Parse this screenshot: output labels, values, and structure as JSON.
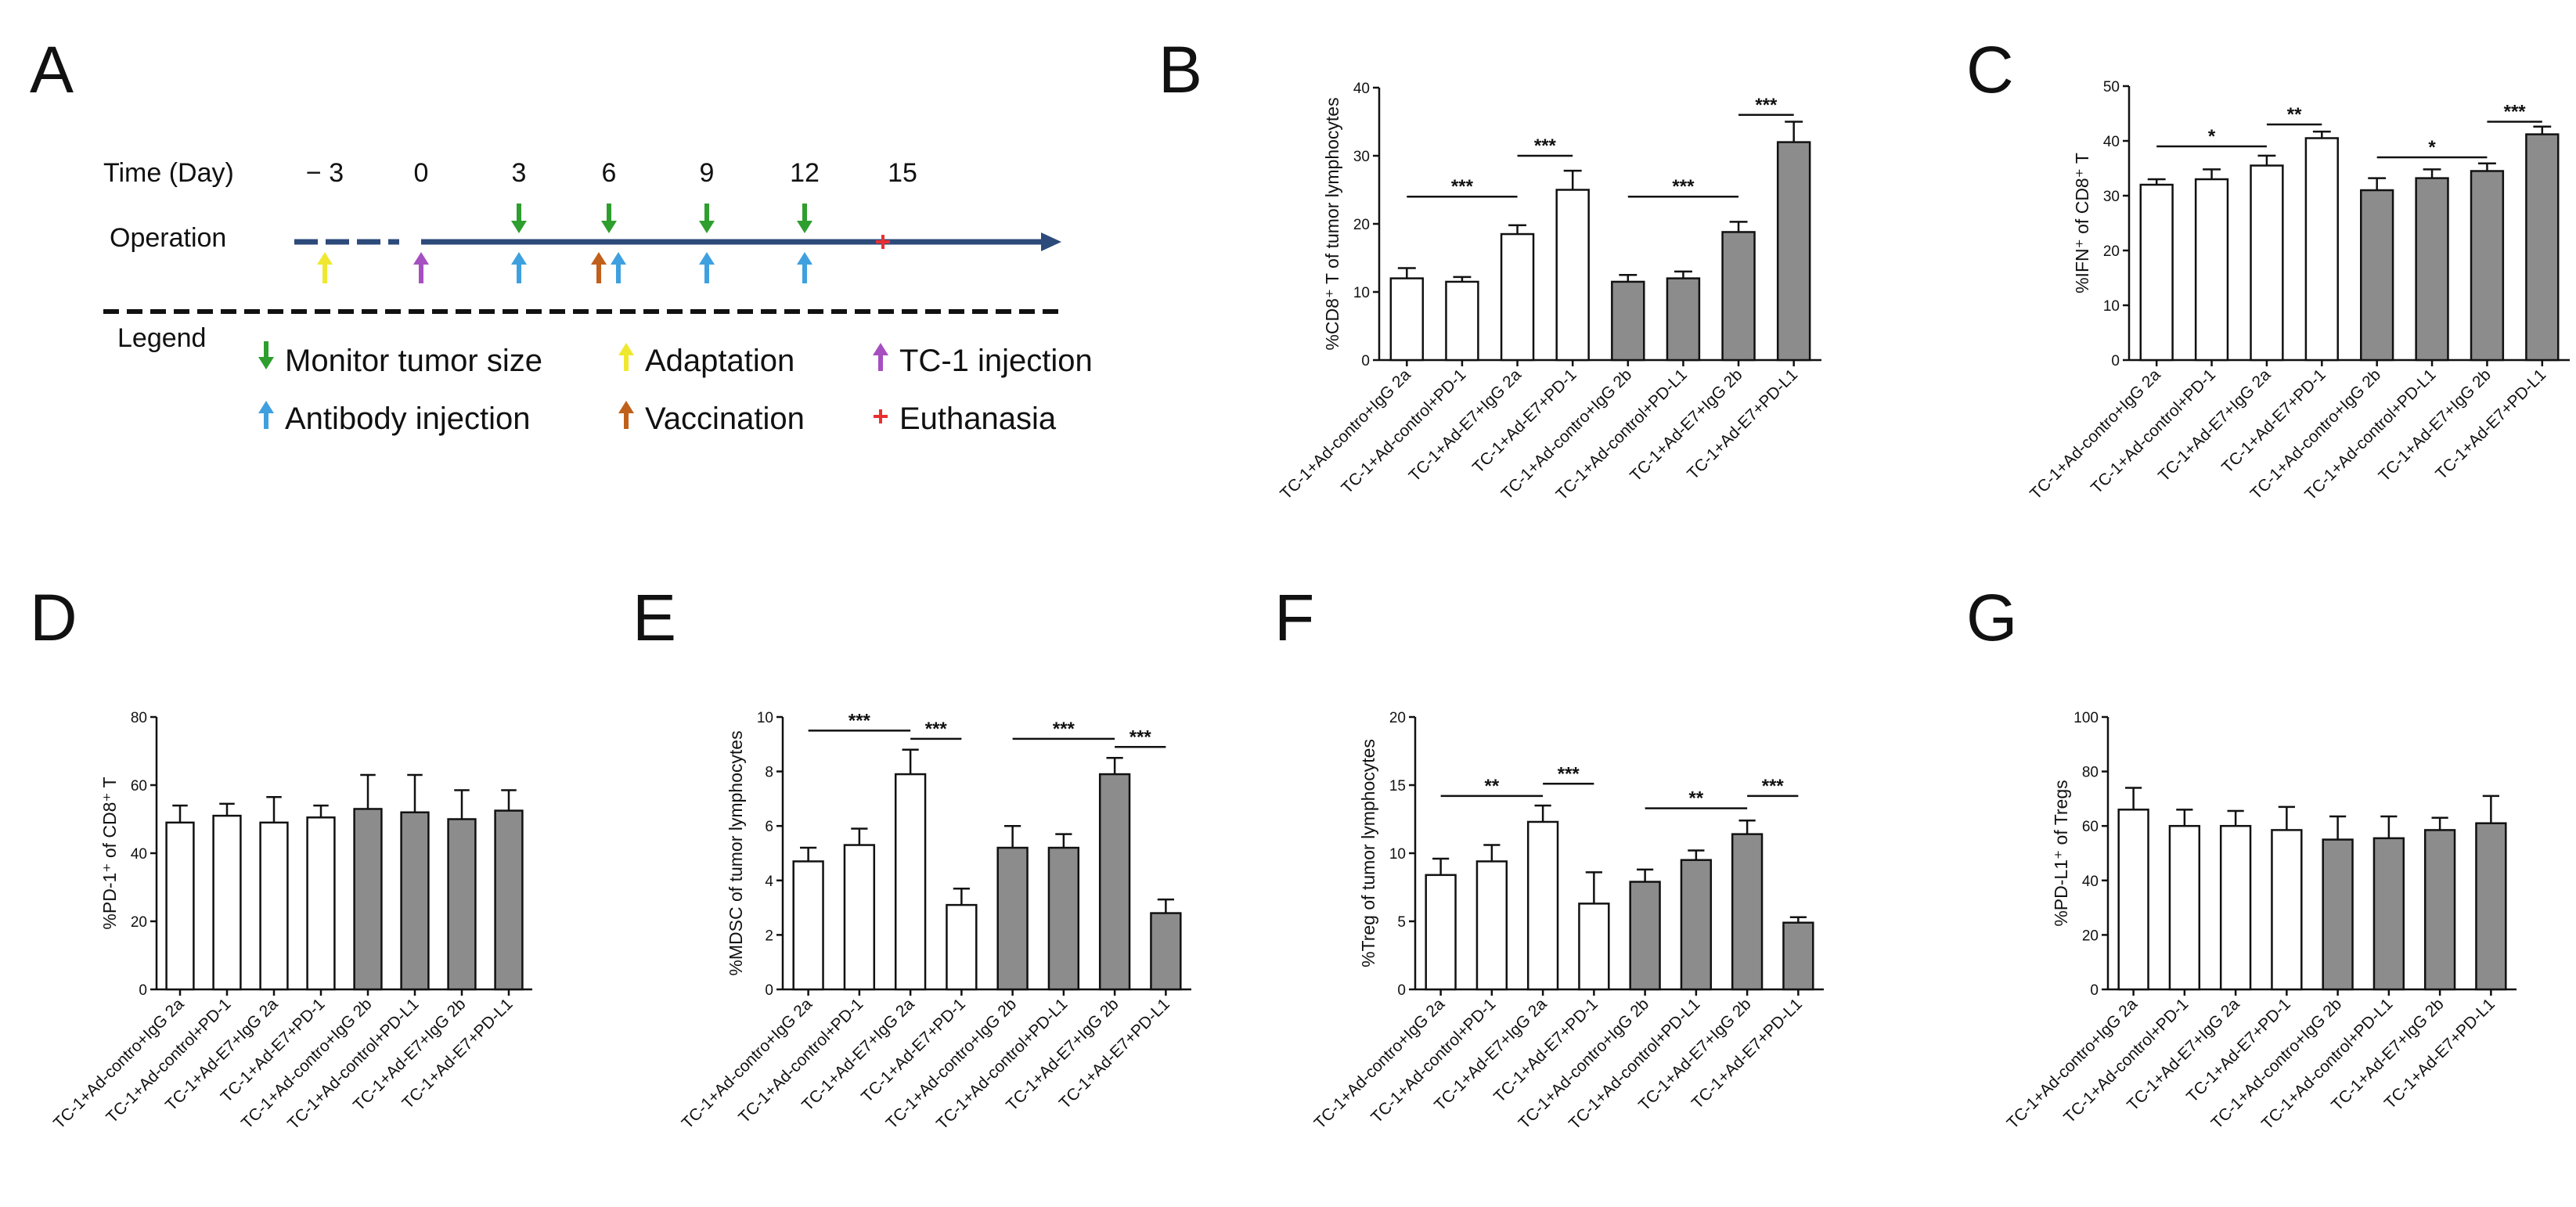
{
  "panels": {
    "A": "A",
    "B": "B",
    "C": "C",
    "D": "D",
    "E": "E",
    "F": "F",
    "G": "G"
  },
  "timeline": {
    "time_label": "Time (Day)",
    "operation_label": "Operation",
    "legend_label": "Legend",
    "days": [
      "− 3",
      "0",
      "3",
      "6",
      "9",
      "12",
      "15"
    ],
    "colors": {
      "monitor": "#2e9e2e",
      "adaptation": "#f0e830",
      "tc1": "#a64fc0",
      "antibody": "#3fa0e0",
      "vaccination": "#c0601a",
      "euthanasia": "#e83030",
      "line": "#2c4a7a"
    },
    "legend": [
      {
        "key": "monitor",
        "label": "Monitor tumor size",
        "icon": "down-arrow"
      },
      {
        "key": "adaptation",
        "label": "Adaptation",
        "icon": "up-arrow"
      },
      {
        "key": "tc1",
        "label": "TC-1 injection",
        "icon": "up-arrow"
      },
      {
        "key": "antibody",
        "label": "Antibody injection",
        "icon": "up-arrow"
      },
      {
        "key": "vaccination",
        "label": "Vaccination",
        "icon": "up-arrow"
      },
      {
        "key": "euthanasia",
        "label": "Euthanasia",
        "icon": "star"
      }
    ]
  },
  "chart_data": [
    {
      "id": "B",
      "type": "bar",
      "ylabel": "%CD8⁺ T of tumor lymphocytes",
      "ylim": [
        0,
        40
      ],
      "yticks": [
        0,
        10,
        20,
        30,
        40
      ],
      "categories": [
        "TC-1+Ad-contro+IgG 2a",
        "TC-1+Ad-control+PD-1",
        "TC-1+Ad-E7+IgG 2a",
        "TC-1+Ad-E7+PD-1",
        "TC-1+Ad-contro+IgG 2b",
        "TC-1+Ad-control+PD-L1",
        "TC-1+Ad-E7+IgG 2b",
        "TC-1+Ad-E7+PD-L1"
      ],
      "values": [
        12,
        11.5,
        18.5,
        25,
        11.5,
        12,
        18.8,
        32
      ],
      "errors": [
        1.5,
        0.7,
        1.3,
        2.8,
        1.0,
        1.0,
        1.5,
        3.0
      ],
      "fills": [
        "white",
        "white",
        "white",
        "white",
        "gray",
        "gray",
        "gray",
        "gray"
      ],
      "significance": [
        {
          "from": 0,
          "to": 2,
          "level": 24,
          "text": "***"
        },
        {
          "from": 2,
          "to": 3,
          "level": 30,
          "text": "***"
        },
        {
          "from": 4,
          "to": 6,
          "level": 24,
          "text": "***"
        },
        {
          "from": 6,
          "to": 7,
          "level": 36,
          "text": "***"
        }
      ]
    },
    {
      "id": "C",
      "type": "bar",
      "ylabel": "%IFN⁺ of CD8⁺ T",
      "ylim": [
        0,
        50
      ],
      "yticks": [
        0,
        10,
        20,
        30,
        40,
        50
      ],
      "categories": [
        "TC-1+Ad-contro+IgG 2a",
        "TC-1+Ad-control+PD-1",
        "TC-1+Ad-E7+IgG 2a",
        "TC-1+Ad-E7+PD-1",
        "TC-1+Ad-contro+IgG 2b",
        "TC-1+Ad-control+PD-L1",
        "TC-1+Ad-E7+IgG 2b",
        "TC-1+Ad-E7+PD-L1"
      ],
      "values": [
        32,
        33,
        35.5,
        40.5,
        31,
        33.2,
        34.5,
        41.2
      ],
      "errors": [
        1.0,
        1.8,
        1.8,
        1.2,
        2.2,
        1.6,
        1.4,
        1.4
      ],
      "fills": [
        "white",
        "white",
        "white",
        "white",
        "gray",
        "gray",
        "gray",
        "gray"
      ],
      "significance": [
        {
          "from": 0,
          "to": 2,
          "level": 39,
          "text": "*"
        },
        {
          "from": 2,
          "to": 3,
          "level": 43,
          "text": "**"
        },
        {
          "from": 4,
          "to": 6,
          "level": 37,
          "text": "*"
        },
        {
          "from": 6,
          "to": 7,
          "level": 43.5,
          "text": "***"
        }
      ]
    },
    {
      "id": "D",
      "type": "bar",
      "ylabel": "%PD-1⁺ of CD8⁺ T",
      "ylim": [
        0,
        80
      ],
      "yticks": [
        0,
        20,
        40,
        60,
        80
      ],
      "categories": [
        "TC-1+Ad-contro+IgG 2a",
        "TC-1+Ad-control+PD-1",
        "TC-1+Ad-E7+IgG 2a",
        "TC-1+Ad-E7+PD-1",
        "TC-1+Ad-contro+IgG 2b",
        "TC-1+Ad-control+PD-L1",
        "TC-1+Ad-E7+IgG 2b",
        "TC-1+Ad-E7+PD-L1"
      ],
      "values": [
        49,
        51,
        49,
        50.5,
        53,
        52,
        50,
        52.5
      ],
      "errors": [
        5,
        3.5,
        7.5,
        3.5,
        10,
        11,
        8.5,
        6
      ],
      "fills": [
        "white",
        "white",
        "white",
        "white",
        "gray",
        "gray",
        "gray",
        "gray"
      ],
      "significance": []
    },
    {
      "id": "E",
      "type": "bar",
      "ylabel": "%MDSC of tumor lymphocytes",
      "ylim": [
        0,
        10
      ],
      "yticks": [
        0,
        2,
        4,
        6,
        8,
        10
      ],
      "categories": [
        "TC-1+Ad-contro+IgG 2a",
        "TC-1+Ad-control+PD-1",
        "TC-1+Ad-E7+IgG 2a",
        "TC-1+Ad-E7+PD-1",
        "TC-1+Ad-contro+IgG 2b",
        "TC-1+Ad-control+PD-L1",
        "TC-1+Ad-E7+IgG 2b",
        "TC-1+Ad-E7+PD-L1"
      ],
      "values": [
        4.7,
        5.3,
        7.9,
        3.1,
        5.2,
        5.2,
        7.9,
        2.8
      ],
      "errors": [
        0.5,
        0.6,
        0.9,
        0.6,
        0.8,
        0.5,
        0.6,
        0.5
      ],
      "fills": [
        "white",
        "white",
        "white",
        "white",
        "gray",
        "gray",
        "gray",
        "gray"
      ],
      "significance": [
        {
          "from": 0,
          "to": 2,
          "level": 9.5,
          "text": "***"
        },
        {
          "from": 2,
          "to": 3,
          "level": 9.2,
          "text": "***"
        },
        {
          "from": 4,
          "to": 6,
          "level": 9.2,
          "text": "***"
        },
        {
          "from": 6,
          "to": 7,
          "level": 8.9,
          "text": "***"
        }
      ]
    },
    {
      "id": "F",
      "type": "bar",
      "ylabel": "%Treg of tumor lymphocytes",
      "ylim": [
        0,
        20
      ],
      "yticks": [
        0,
        5,
        10,
        15,
        20
      ],
      "categories": [
        "TC-1+Ad-contro+IgG 2a",
        "TC-1+Ad-control+PD-1",
        "TC-1+Ad-E7+IgG 2a",
        "TC-1+Ad-E7+PD-1",
        "TC-1+Ad-contro+IgG 2b",
        "TC-1+Ad-control+PD-L1",
        "TC-1+Ad-E7+IgG 2b",
        "TC-1+Ad-E7+PD-L1"
      ],
      "values": [
        8.4,
        9.4,
        12.3,
        6.3,
        7.9,
        9.5,
        11.4,
        4.9
      ],
      "errors": [
        1.2,
        1.2,
        1.2,
        2.3,
        0.9,
        0.7,
        1.0,
        0.4
      ],
      "fills": [
        "white",
        "white",
        "white",
        "white",
        "gray",
        "gray",
        "gray",
        "gray"
      ],
      "significance": [
        {
          "from": 0,
          "to": 2,
          "level": 14.2,
          "text": "**"
        },
        {
          "from": 2,
          "to": 3,
          "level": 15.1,
          "text": "***"
        },
        {
          "from": 4,
          "to": 6,
          "level": 13.3,
          "text": "**"
        },
        {
          "from": 6,
          "to": 7,
          "level": 14.2,
          "text": "***"
        }
      ]
    },
    {
      "id": "G",
      "type": "bar",
      "ylabel": "%PD-L1⁺ of Tregs",
      "ylim": [
        0,
        100
      ],
      "yticks": [
        0,
        20,
        40,
        60,
        80,
        100
      ],
      "categories": [
        "TC-1+Ad-contro+IgG 2a",
        "TC-1+Ad-control+PD-1",
        "TC-1+Ad-E7+IgG 2a",
        "TC-1+Ad-E7+PD-1",
        "TC-1+Ad-contro+IgG 2b",
        "TC-1+Ad-control+PD-L1",
        "TC-1+Ad-E7+IgG 2b",
        "TC-1+Ad-E7+PD-L1"
      ],
      "values": [
        66,
        60,
        60,
        58.5,
        55,
        55.5,
        58.5,
        61
      ],
      "errors": [
        8,
        6,
        5.5,
        8.5,
        8.5,
        8,
        4.5,
        10
      ],
      "fills": [
        "white",
        "white",
        "white",
        "white",
        "gray",
        "gray",
        "gray",
        "gray"
      ],
      "significance": []
    }
  ]
}
